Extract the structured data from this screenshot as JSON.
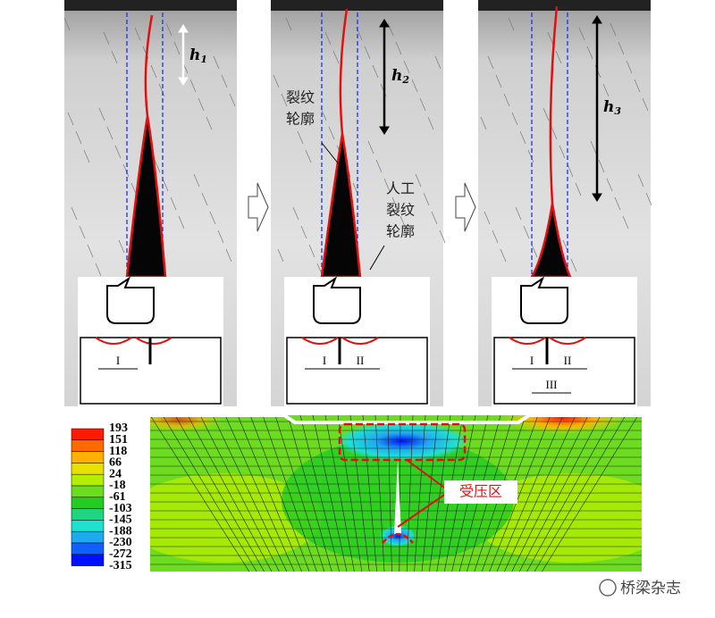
{
  "panels": [
    {
      "height_label": {
        "base": "h",
        "sub": "1"
      },
      "zones": [
        "I"
      ]
    },
    {
      "height_label": {
        "base": "h",
        "sub": "2"
      },
      "zones": [
        "I",
        "II"
      ]
    },
    {
      "height_label": {
        "base": "h",
        "sub": "3"
      },
      "zones": [
        "I",
        "II",
        "III"
      ]
    }
  ],
  "crack_profile_label": [
    "裂纹",
    "轮廓"
  ],
  "artificial_crack_label": [
    "人工",
    "裂纹",
    "轮廓"
  ],
  "colorbar": {
    "labels": [
      193,
      151,
      118,
      66,
      24,
      -18,
      -61,
      -103,
      -145,
      -188,
      -230,
      -272,
      -315
    ],
    "colors": [
      "#ff1a00",
      "#ff6a00",
      "#ffb000",
      "#e8e000",
      "#b4ee00",
      "#6cdc20",
      "#22cc22",
      "#20d480",
      "#20e0d0",
      "#20a8f0",
      "#1060ff",
      "#0010ff"
    ]
  },
  "compression_zone_label": "受压区",
  "watermark": "桥梁杂志"
}
